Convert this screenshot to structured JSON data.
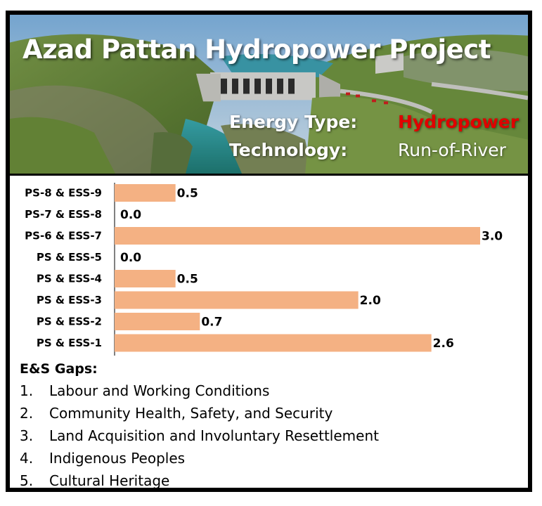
{
  "header": {
    "title": "Azad Pattan Hydropower Project",
    "energy_type_label": "Energy Type:",
    "energy_type_value": "Hydropower",
    "technology_label": "Technology:",
    "technology_value": "Run-of-River"
  },
  "colors": {
    "bar": "#F4B183",
    "energy_type_value": "#E00000",
    "border": "#000000"
  },
  "chart_data": {
    "type": "bar",
    "orientation": "horizontal",
    "categories": [
      "PS-8 & ESS-9",
      "PS-7 & ESS-8",
      "PS-6 & ESS-7",
      "PS & ESS-5",
      "PS & ESS-4",
      "PS & ESS-3",
      "PS & ESS-2",
      "PS & ESS-1"
    ],
    "values": [
      0.5,
      0.0,
      3.0,
      0.0,
      0.5,
      2.0,
      0.7,
      2.6
    ],
    "value_labels": [
      "0.5",
      "0.0",
      "3.0",
      "0.0",
      "0.5",
      "2.0",
      "0.7",
      "2.6"
    ],
    "xlim": [
      0,
      3.0
    ],
    "grid": false
  },
  "gaps": {
    "title": "E&S Gaps:",
    "items": [
      {
        "num": "1.",
        "text": "Labour and Working Conditions"
      },
      {
        "num": "2.",
        "text": "Community Health, Safety, and Security"
      },
      {
        "num": "3.",
        "text": "Land Acquisition and Involuntary Resettlement"
      },
      {
        "num": "4.",
        "text": "Indigenous Peoples"
      },
      {
        "num": "5.",
        "text": "Cultural Heritage"
      }
    ]
  }
}
